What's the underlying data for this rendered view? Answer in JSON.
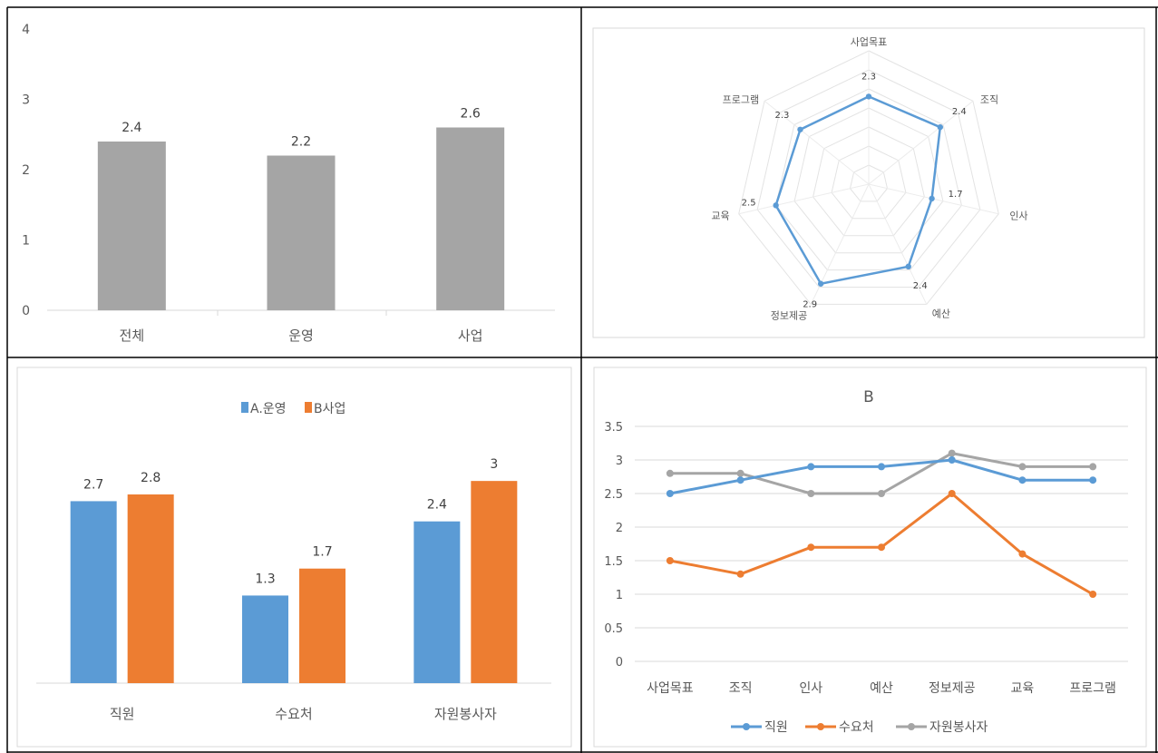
{
  "chart_data": [
    {
      "type": "bar",
      "categories": [
        "전체",
        "운영",
        "사업"
      ],
      "values": [
        2.4,
        2.2,
        2.6
      ],
      "data_labels": [
        "2.4",
        "2.2",
        "2.6"
      ],
      "yticks": [
        "0",
        "1",
        "2",
        "3",
        "4"
      ],
      "ylim": [
        0,
        4
      ],
      "color": "#a5a5a5",
      "grid": false
    },
    {
      "type": "radar",
      "categories": [
        "사업목표",
        "조직",
        "인사",
        "예산",
        "정보제공",
        "교육",
        "프로그램"
      ],
      "values": [
        2.3,
        2.4,
        1.7,
        2.4,
        2.9,
        2.5,
        2.3
      ],
      "data_labels": [
        "2.3",
        "2.4",
        "1.7",
        "2.4",
        "2.9",
        "2.5",
        "2.3"
      ],
      "rlim": [
        0,
        3.5
      ],
      "color": "#5b9bd5",
      "grid": true
    },
    {
      "type": "bar",
      "categories": [
        "직원",
        "수요처",
        "자원봉사자"
      ],
      "series": [
        {
          "name": "A.운영",
          "values": [
            2.7,
            1.3,
            2.4
          ],
          "labels": [
            "2.7",
            "1.3",
            "2.4"
          ],
          "color": "#5b9bd5"
        },
        {
          "name": "B사업",
          "values": [
            2.8,
            1.7,
            3
          ],
          "labels": [
            "2.8",
            "1.7",
            "3"
          ],
          "color": "#ed7d31"
        }
      ],
      "ylim": [
        0,
        3.5
      ],
      "legend": "top",
      "grid": false
    },
    {
      "type": "line",
      "title": "B",
      "categories": [
        "사업목표",
        "조직",
        "인사",
        "예산",
        "정보제공",
        "교육",
        "프로그램"
      ],
      "series": [
        {
          "name": "직원",
          "values": [
            2.5,
            2.7,
            2.9,
            2.9,
            3.0,
            2.7,
            2.7
          ],
          "color": "#5b9bd5"
        },
        {
          "name": "수요처",
          "values": [
            1.5,
            1.3,
            1.7,
            1.7,
            2.5,
            1.6,
            1.0
          ],
          "color": "#ed7d31"
        },
        {
          "name": "자원봉사자",
          "values": [
            2.8,
            2.8,
            2.5,
            2.5,
            3.1,
            2.9,
            2.9
          ],
          "color": "#a5a5a5"
        }
      ],
      "yticks": [
        "0",
        "0.5",
        "1",
        "1.5",
        "2",
        "2.5",
        "3",
        "3.5"
      ],
      "ylim": [
        0,
        3.5
      ],
      "legend": "bottom",
      "grid": true
    }
  ]
}
